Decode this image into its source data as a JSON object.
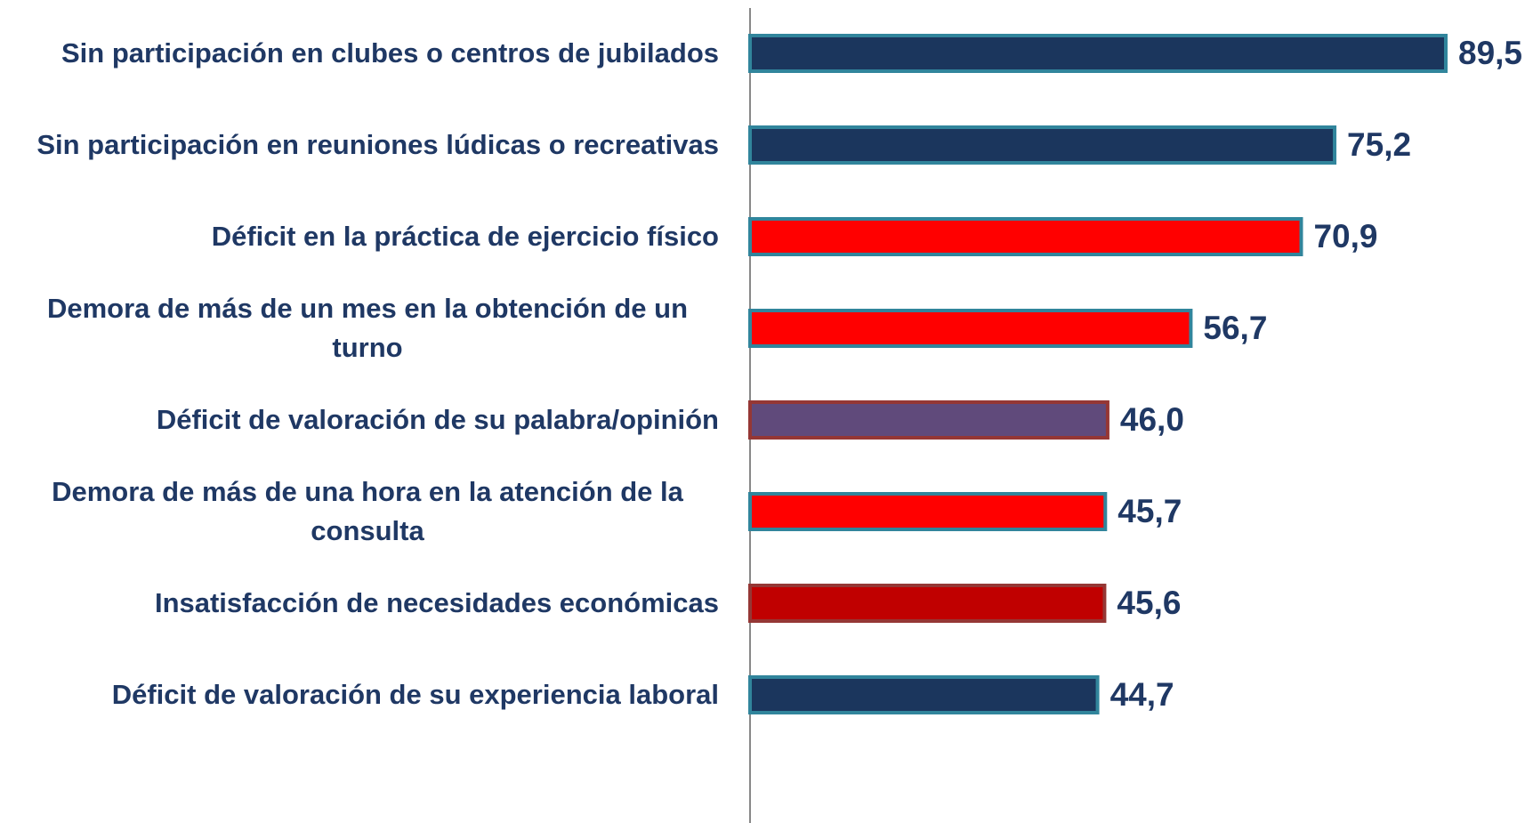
{
  "chart_data": {
    "type": "bar",
    "orientation": "horizontal",
    "categories": [
      "Sin participación en clubes o centros de jubilados",
      "Sin participación en reuniones lúdicas o recreativas",
      "Déficit en la práctica de ejercicio físico",
      "Demora de más de un mes en la obtención de un turno",
      "Déficit de valoración de su palabra/opinión",
      "Demora de más de una hora en la atención de la consulta",
      "Insatisfacción de necesidades económicas",
      "Déficit de valoración de su experiencia laboral"
    ],
    "values": [
      89.5,
      75.2,
      70.9,
      56.7,
      46.0,
      45.7,
      45.6,
      44.7
    ],
    "value_labels": [
      "89,5",
      "75,2",
      "70,9",
      "56,7",
      "46,0",
      "45,7",
      "45,6",
      "44,7"
    ],
    "colors": [
      "#1b365d",
      "#1b365d",
      "#ff0000",
      "#ff0000",
      "#604a7b",
      "#ff0000",
      "#c00000",
      "#1b365d"
    ],
    "border_colors": [
      "#31859c",
      "#31859c",
      "#31859c",
      "#31859c",
      "#953735",
      "#31859c",
      "#953735",
      "#31859c"
    ]
  }
}
